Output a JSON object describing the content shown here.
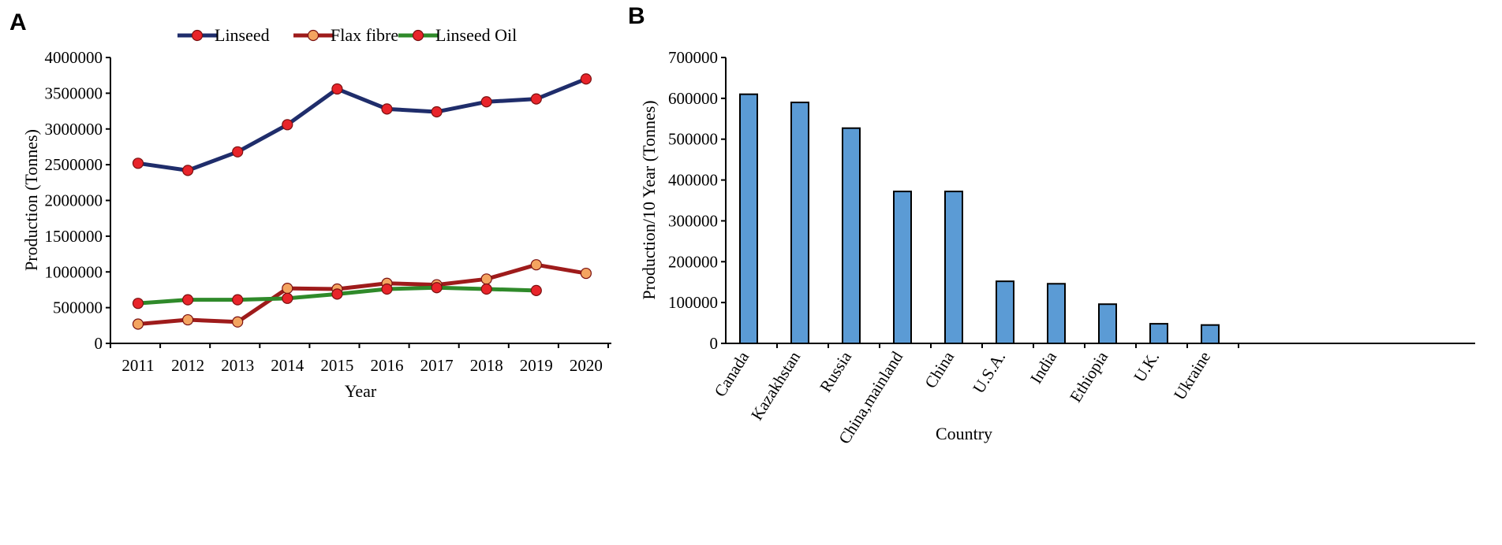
{
  "chart_data": [
    {
      "panel": "A",
      "type": "line",
      "xlabel": "Year",
      "ylabel": "Production (Tonnes)",
      "ylim": [
        0,
        4000000
      ],
      "yticks": [
        "0",
        "500000",
        "1000000",
        "1500000",
        "2000000",
        "2500000",
        "3000000",
        "3500000",
        "4000000"
      ],
      "categories": [
        "2011",
        "2012",
        "2013",
        "2014",
        "2015",
        "2016",
        "2017",
        "2018",
        "2019",
        "2020"
      ],
      "legend_position": "top-center",
      "series": [
        {
          "name": "Linseed",
          "color": "#1f2d6b",
          "marker_color": "#e8242a",
          "values": [
            2520000,
            2420000,
            2680000,
            3060000,
            3560000,
            3280000,
            3240000,
            3380000,
            3420000,
            3700000
          ]
        },
        {
          "name": "Flax fibre",
          "color": "#9e1b1b",
          "marker_color": "#f4a460",
          "values": [
            270000,
            330000,
            300000,
            770000,
            760000,
            840000,
            820000,
            900000,
            1100000,
            980000
          ]
        },
        {
          "name": "Linseed Oil",
          "color": "#2f8a2a",
          "marker_color": "#e8242a",
          "values": [
            560000,
            610000,
            610000,
            630000,
            690000,
            760000,
            780000,
            760000,
            740000,
            null
          ]
        }
      ]
    },
    {
      "panel": "B",
      "type": "bar",
      "xlabel": "Country",
      "ylabel": "Production/10 Year (Tonnes)",
      "ylim": [
        0,
        700000
      ],
      "yticks": [
        "0",
        "100000",
        "200000",
        "300000",
        "400000",
        "500000",
        "600000",
        "700000"
      ],
      "bar_color": "#5b9bd5",
      "categories": [
        "Canada",
        "Kazakhstan",
        "Russia",
        "China,mainland",
        "China",
        "U.S.A.",
        "India",
        "Ethiopia",
        "U.K.",
        "Ukraine"
      ],
      "values": [
        610000,
        590000,
        527000,
        372000,
        372000,
        152000,
        146000,
        96000,
        48000,
        45000
      ]
    }
  ]
}
